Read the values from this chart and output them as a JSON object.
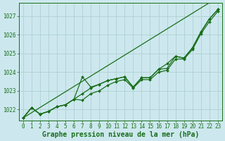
{
  "title": "Graphe pression niveau de la mer (hPa)",
  "bg_color": "#cce8ee",
  "grid_color": "#aacccc",
  "line_color": "#1a6e1a",
  "x_min": 0,
  "x_max": 23,
  "y_min": 1021.4,
  "y_max": 1027.7,
  "yticks": [
    1022,
    1023,
    1024,
    1025,
    1026,
    1027
  ],
  "xticks": [
    0,
    1,
    2,
    3,
    4,
    5,
    6,
    7,
    8,
    9,
    10,
    11,
    12,
    13,
    14,
    15,
    16,
    17,
    18,
    19,
    20,
    21,
    22,
    23
  ],
  "series": [
    [
      1021.55,
      1022.1,
      1021.75,
      1021.9,
      1022.15,
      1022.25,
      1022.55,
      1022.85,
      1023.15,
      1023.35,
      1023.55,
      1023.65,
      1023.75,
      1023.25,
      1023.7,
      1023.7,
      1024.15,
      1024.2,
      1024.85,
      1024.75,
      1025.3,
      1026.15,
      1026.85,
      1027.35
    ],
    [
      1021.55,
      1022.1,
      1021.75,
      1021.9,
      1022.15,
      1022.25,
      1022.55,
      1023.75,
      1023.2,
      1023.35,
      1023.55,
      1023.65,
      1023.75,
      1023.2,
      1023.7,
      1023.7,
      1024.15,
      1024.45,
      1024.85,
      1024.75,
      1025.3,
      1026.15,
      1026.85,
      1027.35
    ],
    [
      1021.55,
      1022.1,
      1021.75,
      1021.9,
      1022.15,
      1022.25,
      1022.55,
      1022.85,
      1023.15,
      1023.35,
      1023.55,
      1023.65,
      1023.75,
      1023.2,
      1023.7,
      1023.7,
      1024.15,
      1024.2,
      1024.85,
      1024.75,
      1025.3,
      1026.15,
      1026.85,
      1027.35
    ],
    [
      1021.55,
      1022.1,
      1021.75,
      1021.9,
      1022.15,
      1022.25,
      1022.55,
      1022.85,
      1023.15,
      1023.35,
      1023.55,
      1023.65,
      1023.75,
      1023.2,
      1023.7,
      1023.7,
      1024.15,
      1024.2,
      1024.85,
      1024.75,
      1025.3,
      1026.15,
      1026.85,
      1027.35
    ]
  ],
  "series_main": [
    1021.55,
    1022.1,
    1021.75,
    1021.9,
    1022.15,
    1022.25,
    1022.55,
    1022.85,
    1023.15,
    1023.35,
    1023.55,
    1023.65,
    1023.75,
    1023.2,
    1023.7,
    1023.7,
    1024.15,
    1024.2,
    1024.85,
    1024.75,
    1025.3,
    1026.15,
    1026.85,
    1027.35
  ],
  "series_high": [
    1021.55,
    1022.1,
    1021.75,
    1021.9,
    1022.15,
    1022.25,
    1022.55,
    1023.75,
    1023.2,
    1023.35,
    1023.55,
    1023.65,
    1023.75,
    1023.2,
    1023.7,
    1023.7,
    1024.15,
    1024.45,
    1024.85,
    1024.75,
    1025.3,
    1026.15,
    1026.85,
    1027.35
  ],
  "series_low": [
    1021.55,
    1022.1,
    1021.75,
    1021.9,
    1022.15,
    1022.25,
    1022.55,
    1022.5,
    1022.85,
    1023.0,
    1023.3,
    1023.5,
    1023.6,
    1023.15,
    1023.6,
    1023.6,
    1024.0,
    1024.1,
    1024.7,
    1024.7,
    1025.2,
    1026.05,
    1026.7,
    1027.25
  ],
  "series_trend": [
    1021.55,
    1021.83,
    1022.11,
    1022.39,
    1022.67,
    1022.95,
    1023.23,
    1023.51,
    1023.79,
    1024.07,
    1024.35,
    1024.63,
    1024.91,
    1025.19,
    1025.47,
    1025.75,
    1026.03,
    1026.31,
    1026.59,
    1026.87,
    1027.15,
    1027.43,
    1027.71,
    1027.99
  ],
  "marker": "D",
  "marker_size": 2.0,
  "linewidth": 0.9,
  "title_color": "#1a6e1a",
  "title_fontsize": 7.0,
  "tick_fontsize": 5.5
}
